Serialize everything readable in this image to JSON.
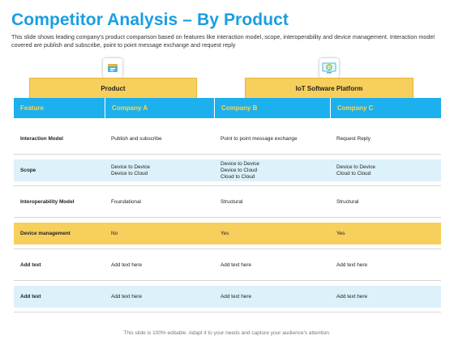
{
  "page": {
    "title": "Competitor Analysis – By Product",
    "subtitle": "This slide shows leading company's product comparison based on features like interaction model, scope, interoperability and device management. Interaction model covered are publish and subscribe, point to point message exchange and request reply",
    "footer": "This slide is 100% editable. Adapt it to your needs and capture your audience's attention."
  },
  "groups": {
    "left": {
      "label": "Product",
      "icon": "product-box-icon"
    },
    "right": {
      "label": "IoT Software Platform",
      "icon": "iot-gear-screen-icon"
    }
  },
  "table": {
    "columns": [
      "Feature",
      "Company A",
      "Company B",
      "Company C"
    ],
    "rows": [
      {
        "feature": "Interaction Model",
        "a": "Publish and subscribe",
        "b": "Point to point message exchange",
        "c": "Request Reply",
        "style": "plain"
      },
      {
        "feature": "Scope",
        "a": "Device to Device\nDevice to Cloud",
        "b": "Device to Device\nDevice to Cloud\nCloud to Cloud",
        "c": "Device to Device\nCloud to Cloud",
        "style": "shade"
      },
      {
        "feature": "Interoperability Model",
        "a": "Foundational",
        "b": "Structural",
        "c": "Structural",
        "style": "plain"
      },
      {
        "feature": "Device management",
        "a": "No",
        "b": "Yes",
        "c": "Yes",
        "style": "highlight"
      },
      {
        "feature": "Add text",
        "a": "Add text here",
        "b": "Add text here",
        "c": "Add text here",
        "style": "plain"
      },
      {
        "feature": "Add text",
        "a": "Add text here",
        "b": "Add text here",
        "c": "Add text here",
        "style": "shade"
      }
    ]
  },
  "colors": {
    "accent_blue": "#1cb0ee",
    "title_blue": "#1a9ee0",
    "header_yellow": "#f7cf5c",
    "header_text": "#ffd54a",
    "row_shade": "#ddf1fa"
  }
}
